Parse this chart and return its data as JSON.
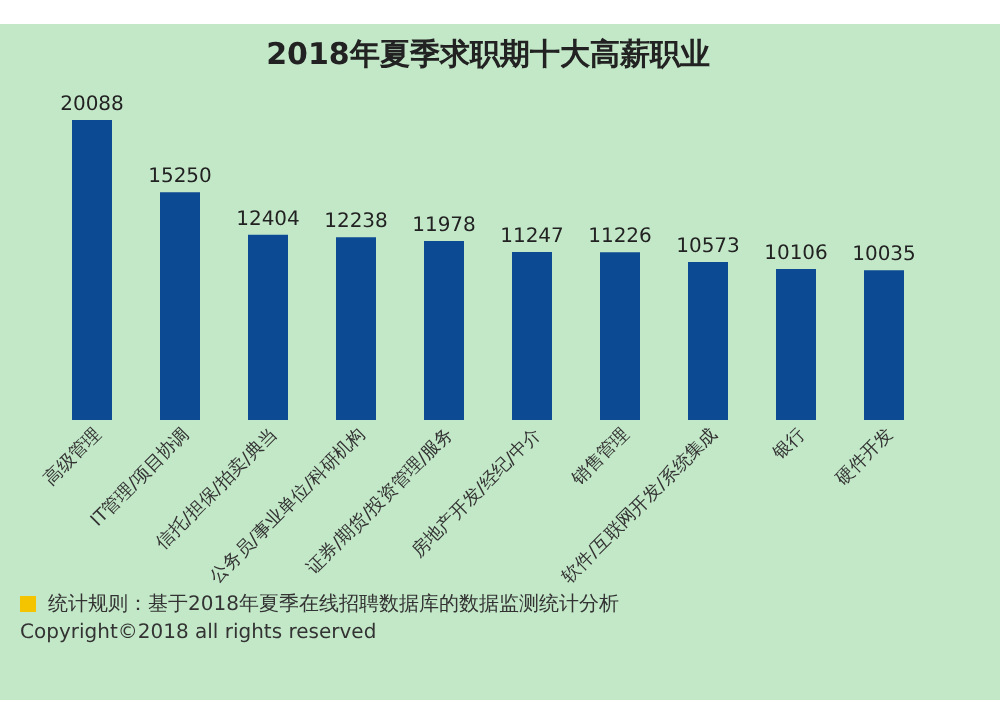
{
  "chart_data": {
    "type": "bar",
    "title": "2018年夏季求职期十大高薪职业",
    "categories": [
      "高级管理",
      "IT管理/项目协调",
      "信托/担保/拍卖/典当",
      "公务员/事业单位/科研机构",
      "证券/期货/投资管理/服务",
      "房地产开发/经纪/中介",
      "销售管理",
      "软件/互联网开发/系统集成",
      "银行",
      "硬件开发"
    ],
    "values": [
      20088,
      15250,
      12404,
      12238,
      11978,
      11247,
      11226,
      10573,
      10106,
      10035
    ],
    "color": "#0d4a94",
    "data_labels": true,
    "annotations": [
      "统计规则：基于2018年夏季在线招聘数据库的数据监测统计分析",
      "Copyright©2018 all rights reserved"
    ]
  }
}
